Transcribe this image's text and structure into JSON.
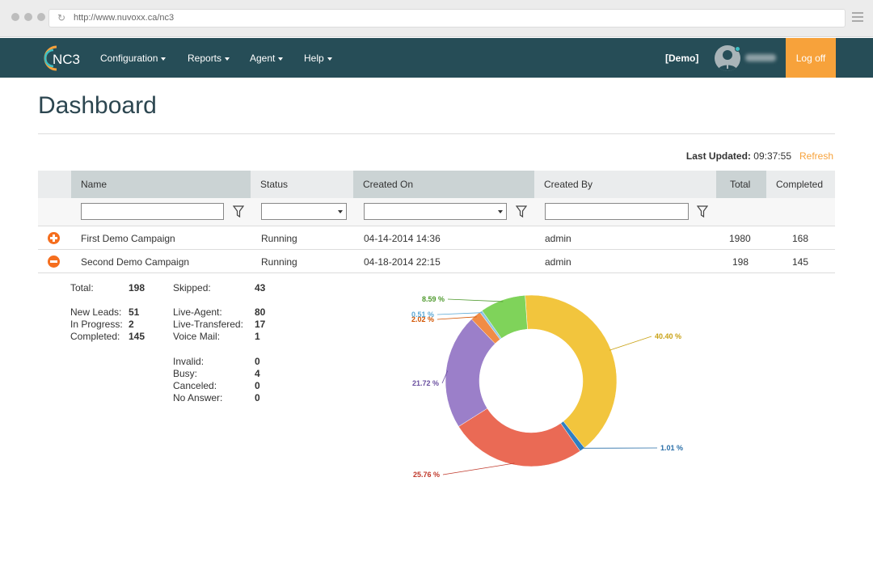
{
  "browser": {
    "url": "http://www.nuvoxx.ca/nc3"
  },
  "nav": {
    "logo_text": "NC3",
    "items": [
      "Configuration",
      "Reports",
      "Agent",
      "Help"
    ],
    "demo_label": "[Demo]",
    "logoff": "Log off"
  },
  "page": {
    "title": "Dashboard",
    "last_updated_label": "Last Updated:",
    "last_updated_time": "09:37:55",
    "refresh": "Refresh"
  },
  "table": {
    "headers": [
      "Name",
      "Status",
      "Created On",
      "Created By",
      "Total",
      "Completed"
    ],
    "rows": [
      {
        "name": "First Demo Campaign",
        "status": "Running",
        "created_on": "04-14-2014 14:36",
        "created_by": "admin",
        "total": "1980",
        "completed": "168"
      },
      {
        "name": "Second Demo Campaign",
        "status": "Running",
        "created_on": "04-18-2014 22:15",
        "created_by": "admin",
        "total": "198",
        "completed": "145"
      }
    ]
  },
  "stats": {
    "total_label": "Total:",
    "total": "198",
    "new_leads_label": "New Leads:",
    "new_leads": "51",
    "in_progress_label": "In Progress:",
    "in_progress": "2",
    "completed_label": "Completed:",
    "completed": "145",
    "skipped_label": "Skipped:",
    "skipped": "43",
    "live_agent_label": "Live-Agent:",
    "live_agent": "80",
    "live_transfered_label": "Live-Transfered:",
    "live_transfered": "17",
    "voice_mail_label": "Voice Mail:",
    "voice_mail": "1",
    "invalid_label": "Invalid:",
    "invalid": "0",
    "busy_label": "Busy:",
    "busy": "4",
    "canceled_label": "Canceled:",
    "canceled": "0",
    "no_answer_label": "No Answer:",
    "no_answer": "0"
  },
  "chart_data": {
    "type": "pie",
    "donut": true,
    "slices": [
      {
        "label": "40.40 %",
        "value": 40.4,
        "color": "#f2c53d",
        "label_color": "#c9a215"
      },
      {
        "label": "1.01 %",
        "value": 1.01,
        "color": "#2f7fc1",
        "label_color": "#2a6fa8"
      },
      {
        "label": "25.76 %",
        "value": 25.76,
        "color": "#ea6a55",
        "label_color": "#c0392b"
      },
      {
        "label": "21.72 %",
        "value": 21.72,
        "color": "#9b7fc9",
        "label_color": "#6a4fa0"
      },
      {
        "label": "2.02 %",
        "value": 2.02,
        "color": "#f08c47",
        "label_color": "#d35400"
      },
      {
        "label": "0.51 %",
        "value": 0.51,
        "color": "#8ec6e6",
        "label_color": "#5da9d6"
      },
      {
        "label": "8.59 %",
        "value": 8.59,
        "color": "#7fd35a",
        "label_color": "#4f9a2e"
      }
    ]
  }
}
